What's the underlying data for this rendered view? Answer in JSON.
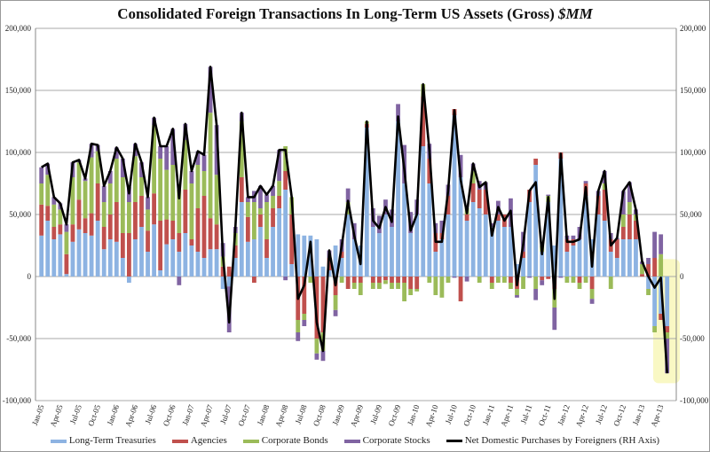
{
  "chart_data": {
    "type": "bar",
    "stacked": true,
    "title": "Consolidated Foreign Transactions In Long-Term US Assets (Gross)",
    "title_units": "$MM",
    "ylim": [
      -100000,
      200000
    ],
    "y2lim": [
      -100000,
      200000
    ],
    "yticks": [
      "200,000",
      "150,000",
      "100,000",
      "50,000",
      "0",
      "-50,000",
      "-100,000"
    ],
    "y2ticks": [
      "200,000",
      "150,000",
      "100,000",
      "50,000",
      "0",
      "-50,000",
      "-100,000"
    ],
    "ytick_values": [
      200000,
      150000,
      100000,
      50000,
      0,
      -50000,
      -100000
    ],
    "grid": true,
    "legend_position": "bottom",
    "xtick_labels": [
      "Jan-05",
      "Apr-05",
      "Jul-05",
      "Oct-05",
      "Jan-06",
      "Apr-06",
      "Jul-06",
      "Oct-06",
      "Jan-07",
      "Apr-07",
      "Jul-07",
      "Oct-07",
      "Jan-08",
      "Apr-08",
      "Jul-08",
      "Oct-08",
      "Jan-09",
      "Apr-09",
      "Jul-09",
      "Oct-09",
      "Jan-10",
      "Apr-10",
      "Jul-10",
      "Oct-10",
      "Jan-11",
      "Apr-11",
      "Jul-11",
      "Oct-11",
      "Jan-12",
      "Apr-12",
      "Jul-12",
      "Oct-12",
      "Jan-13",
      "Apr-13"
    ],
    "x_start": "Jan-05",
    "x_end": "May-13",
    "units": "thousands of $MM shown as value*1000",
    "series": [
      {
        "name": "Long-Term Treasuries",
        "color": "#8db3e2",
        "values": [
          33,
          45,
          30,
          34,
          2,
          28,
          38,
          35,
          33,
          45,
          22,
          30,
          28,
          15,
          -5,
          30,
          40,
          20,
          42,
          5,
          26,
          30,
          20,
          35,
          25,
          20,
          15,
          22,
          22,
          -10,
          -8,
          15,
          60,
          28,
          30,
          40,
          15,
          40,
          55,
          70,
          10,
          34,
          33,
          33,
          30,
          8,
          5,
          25,
          15,
          50,
          30,
          25,
          120,
          40,
          35,
          50,
          40,
          125,
          75,
          35,
          50,
          105,
          75,
          20,
          30,
          50,
          130,
          80,
          45,
          60,
          55,
          50,
          40,
          45,
          40,
          40,
          10,
          15,
          60,
          90,
          20,
          60,
          25,
          95,
          20,
          25,
          30,
          65,
          30,
          50,
          45,
          20,
          15,
          30,
          30,
          30,
          0,
          -10,
          -40,
          -30,
          -40
        ]
      },
      {
        "name": "Agencies",
        "color": "#c0504d",
        "values": [
          25,
          12,
          10,
          8,
          16,
          14,
          24,
          12,
          18,
          30,
          18,
          20,
          32,
          20,
          35,
          30,
          25,
          17,
          25,
          40,
          20,
          15,
          15,
          35,
          5,
          35,
          50,
          25,
          20,
          8,
          8,
          10,
          20,
          20,
          -5,
          10,
          15,
          15,
          10,
          15,
          40,
          -35,
          -30,
          0,
          -50,
          -45,
          10,
          -15,
          5,
          -10,
          -5,
          -5,
          3,
          -5,
          -5,
          -3,
          -5,
          -5,
          -5,
          -10,
          -10,
          40,
          20,
          15,
          5,
          15,
          5,
          -20,
          5,
          15,
          15,
          20,
          -5,
          5,
          10,
          -5,
          -10,
          5,
          10,
          5,
          -3,
          -2,
          -10,
          5,
          10,
          5,
          -5,
          10,
          -10,
          15,
          25,
          10,
          15,
          10,
          20,
          15,
          2,
          10,
          15,
          -5,
          -5
        ]
      },
      {
        "name": "Corporate Bonds",
        "color": "#9bbb59",
        "values": [
          17,
          25,
          18,
          12,
          18,
          38,
          30,
          30,
          45,
          26,
          20,
          25,
          35,
          45,
          25,
          37,
          15,
          17,
          55,
          50,
          40,
          45,
          35,
          40,
          45,
          35,
          20,
          85,
          40,
          8,
          0,
          10,
          45,
          12,
          30,
          5,
          30,
          10,
          12,
          20,
          14,
          -10,
          -5,
          -5,
          -12,
          -15,
          0,
          -12,
          -5,
          10,
          -5,
          -10,
          2,
          -5,
          -5,
          -3,
          -5,
          -5,
          -15,
          -5,
          -2,
          10,
          -5,
          -15,
          -17,
          -5,
          0,
          0,
          5,
          10,
          -5,
          0,
          -5,
          -5,
          -5,
          -5,
          -5,
          -10,
          0,
          -10,
          5,
          5,
          -15,
          0,
          -5,
          -5,
          -5,
          -5,
          -8,
          0,
          5,
          -10,
          0,
          10,
          10,
          5,
          8,
          -5,
          -5,
          18,
          -5
        ]
      },
      {
        "name": "Corporate Stocks",
        "color": "#8064a2",
        "values": [
          13,
          9,
          6,
          5,
          6,
          12,
          2,
          2,
          11,
          5,
          13,
          10,
          9,
          15,
          12,
          10,
          12,
          10,
          6,
          10,
          19,
          29,
          -7,
          13,
          10,
          11,
          13,
          37,
          40,
          11,
          -37,
          5,
          7,
          4,
          9,
          18,
          6,
          8,
          25,
          -3,
          0,
          -7,
          -5,
          0,
          -5,
          -8,
          6,
          -5,
          10,
          11,
          13,
          0,
          0,
          15,
          14,
          12,
          14,
          14,
          31,
          17,
          12,
          0,
          12,
          8,
          10,
          9,
          -1,
          18,
          -4,
          6,
          7,
          6,
          3,
          11,
          0,
          23,
          -2,
          16,
          -1,
          -9,
          -4,
          1,
          -18,
          -1,
          3,
          3,
          10,
          2,
          -4,
          4,
          10,
          5,
          1,
          19,
          16,
          4,
          2,
          5,
          21,
          16,
          -28
        ]
      },
      {
        "name": "Net Domestic Purchases by Foreigners (RH Axis)",
        "color": "#000000",
        "type": "line",
        "values": [
          88,
          91,
          64,
          59,
          42,
          92,
          94,
          79,
          107,
          106,
          73,
          85,
          104,
          95,
          67,
          107,
          92,
          64,
          128,
          105,
          105,
          119,
          63,
          123,
          85,
          101,
          98,
          169,
          122,
          17,
          -37,
          40,
          132,
          64,
          64,
          73,
          66,
          73,
          102,
          102,
          64,
          -18,
          -7,
          28,
          -37,
          -60,
          21,
          -7,
          25,
          61,
          33,
          10,
          125,
          45,
          39,
          56,
          44,
          129,
          86,
          37,
          50,
          155,
          102,
          28,
          28,
          69,
          134,
          78,
          51,
          91,
          72,
          76,
          33,
          56,
          45,
          53,
          -7,
          26,
          69,
          76,
          18,
          64,
          -18,
          99,
          28,
          28,
          30,
          72,
          8,
          69,
          85,
          25,
          31,
          69,
          76,
          54,
          12,
          0,
          -9,
          -1,
          -78
        ]
      }
    ],
    "value_scale": 1000,
    "annotation": "highlighted recent months (yellow box)"
  }
}
